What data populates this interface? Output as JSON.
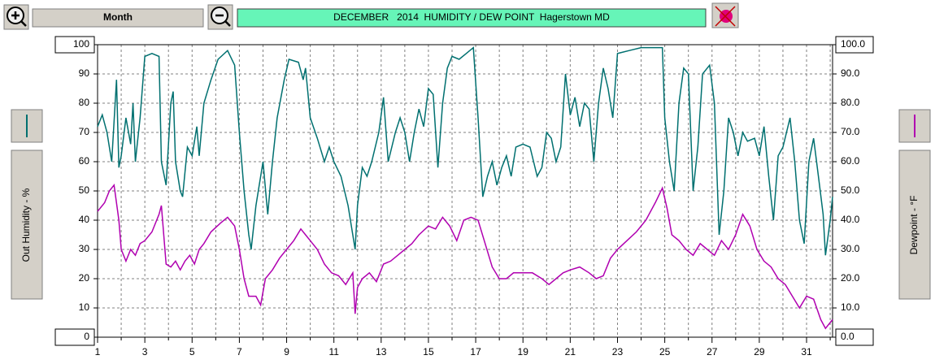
{
  "toolbar": {
    "period": "Month"
  },
  "chart_data": {
    "type": "line",
    "title": "DECEMBER   2014  HUMIDITY / DEW POINT  Hagerstown MD",
    "ylabel": "Out Humidity - %",
    "y2label": "Dewpoint - °F",
    "xlim": [
      1,
      32.1
    ],
    "xticks": [
      1,
      3,
      5,
      7,
      9,
      11,
      13,
      15,
      17,
      19,
      21,
      23,
      25,
      27,
      29,
      31
    ],
    "xminorticks": [
      2,
      4,
      6,
      8,
      10,
      12,
      14,
      16,
      18,
      20,
      22,
      24,
      26,
      28,
      30,
      32
    ],
    "ylim": [
      0,
      100
    ],
    "yticks": [
      0,
      10,
      20,
      30,
      40,
      50,
      60,
      70,
      80,
      90,
      100
    ],
    "y2lim": [
      0,
      100
    ],
    "y2ticks": [
      {
        "value": 0,
        "label": "0.0"
      },
      {
        "value": 10,
        "label": "10.0"
      },
      {
        "value": 20,
        "label": "20.0"
      },
      {
        "value": 30,
        "label": "30.0"
      },
      {
        "value": 40,
        "label": "40.0"
      },
      {
        "value": 50,
        "label": "50.0"
      },
      {
        "value": 60,
        "label": "60.0"
      },
      {
        "value": 70,
        "label": "70.0"
      },
      {
        "value": 80,
        "label": "80.0"
      },
      {
        "value": 90,
        "label": "90.0"
      },
      {
        "value": 100,
        "label": "100.0"
      }
    ],
    "grid": true,
    "series": [
      {
        "color": "#007070",
        "x": [
          1.0,
          1.2,
          1.4,
          1.6,
          1.8,
          1.9,
          2.0,
          2.2,
          2.4,
          2.5,
          2.6,
          2.8,
          3.0,
          3.3,
          3.6,
          3.7,
          3.9,
          4.1,
          4.2,
          4.3,
          4.5,
          4.6,
          4.8,
          5.0,
          5.2,
          5.3,
          5.5,
          5.8,
          6.1,
          6.5,
          6.8,
          7.0,
          7.2,
          7.4,
          7.5,
          7.7,
          7.9,
          8.0,
          8.2,
          8.4,
          8.6,
          8.9,
          9.1,
          9.5,
          9.7,
          9.8,
          10.0,
          10.3,
          10.6,
          10.8,
          11.0,
          11.3,
          11.6,
          11.9,
          12.0,
          12.2,
          12.4,
          12.6,
          12.9,
          13.1,
          13.3,
          13.6,
          13.8,
          14.0,
          14.2,
          14.4,
          14.6,
          14.8,
          15.0,
          15.2,
          15.4,
          15.6,
          15.8,
          16.0,
          16.3,
          16.6,
          16.9,
          17.1,
          17.3,
          17.5,
          17.7,
          17.9,
          18.1,
          18.3,
          18.5,
          18.7,
          19.0,
          19.3,
          19.6,
          19.8,
          20.0,
          20.2,
          20.4,
          20.6,
          20.8,
          21.0,
          21.2,
          21.4,
          21.6,
          21.8,
          22.0,
          22.2,
          22.4,
          22.6,
          22.8,
          23.0,
          23.5,
          24.0,
          24.5,
          24.9,
          25.0,
          25.2,
          25.4,
          25.6,
          25.8,
          26.0,
          26.2,
          26.4,
          26.6,
          26.9,
          27.1,
          27.3,
          27.5,
          27.7,
          27.9,
          28.1,
          28.3,
          28.5,
          28.8,
          29.0,
          29.2,
          29.4,
          29.6,
          29.8,
          30.0,
          30.3,
          30.5,
          30.7,
          30.9,
          31.1,
          31.3,
          31.5,
          31.7,
          31.8,
          32.0,
          32.1
        ],
        "values": [
          72,
          76,
          70,
          60,
          88,
          58,
          62,
          75,
          66,
          80,
          60,
          75,
          96,
          97,
          96,
          60,
          52,
          80,
          84,
          60,
          50,
          48,
          65,
          62,
          72,
          62,
          80,
          88,
          95,
          98,
          93,
          70,
          50,
          35,
          30,
          45,
          55,
          60,
          42,
          60,
          75,
          88,
          95,
          94,
          88,
          92,
          75,
          68,
          60,
          65,
          60,
          55,
          45,
          30,
          45,
          58,
          55,
          60,
          70,
          82,
          60,
          70,
          75,
          70,
          60,
          70,
          78,
          72,
          85,
          83,
          58,
          80,
          92,
          96,
          95,
          97,
          99,
          75,
          48,
          55,
          60,
          52,
          58,
          62,
          55,
          65,
          66,
          65,
          55,
          58,
          70,
          68,
          60,
          65,
          90,
          76,
          82,
          72,
          80,
          78,
          60,
          80,
          92,
          85,
          75,
          97,
          98,
          99,
          99,
          99,
          75,
          60,
          50,
          80,
          92,
          90,
          50,
          65,
          90,
          93,
          80,
          35,
          50,
          75,
          70,
          62,
          70,
          67,
          68,
          62,
          72,
          55,
          40,
          62,
          65,
          75,
          60,
          40,
          32,
          60,
          68,
          55,
          42,
          28,
          40,
          48
        ]
      },
      {
        "color": "#b000b0",
        "axis": "y2",
        "x": [
          1.0,
          1.3,
          1.5,
          1.7,
          1.9,
          2.0,
          2.2,
          2.4,
          2.6,
          2.8,
          3.0,
          3.3,
          3.6,
          3.7,
          3.9,
          4.1,
          4.3,
          4.5,
          4.7,
          4.9,
          5.1,
          5.3,
          5.5,
          5.8,
          6.2,
          6.5,
          6.8,
          7.0,
          7.2,
          7.4,
          7.7,
          7.9,
          8.1,
          8.4,
          8.7,
          9.0,
          9.3,
          9.6,
          9.8,
          10.0,
          10.3,
          10.6,
          10.9,
          11.2,
          11.5,
          11.8,
          11.9,
          12.0,
          12.2,
          12.5,
          12.8,
          13.1,
          13.4,
          13.7,
          14.0,
          14.3,
          14.6,
          15.0,
          15.3,
          15.6,
          15.9,
          16.2,
          16.5,
          16.8,
          17.1,
          17.4,
          17.7,
          18.0,
          18.3,
          18.6,
          19.0,
          19.4,
          19.8,
          20.1,
          20.4,
          20.7,
          21.0,
          21.4,
          21.8,
          22.1,
          22.4,
          22.7,
          23.0,
          23.4,
          23.8,
          24.2,
          24.6,
          24.9,
          25.1,
          25.3,
          25.6,
          25.9,
          26.2,
          26.5,
          26.8,
          27.1,
          27.4,
          27.7,
          28.0,
          28.3,
          28.6,
          28.9,
          29.2,
          29.5,
          29.8,
          30.1,
          30.4,
          30.7,
          31.0,
          31.3,
          31.6,
          31.8,
          32.1
        ],
        "values": [
          43,
          46,
          50,
          52,
          40,
          30,
          26,
          30,
          28,
          32,
          33,
          36,
          42,
          45,
          25,
          24,
          26,
          23,
          26,
          28,
          25,
          30,
          32,
          36,
          39,
          41,
          38,
          30,
          20,
          14,
          14,
          11,
          20,
          23,
          27,
          30,
          33,
          37,
          35,
          33,
          30,
          25,
          22,
          21,
          18,
          22,
          8,
          17,
          20,
          22,
          19,
          25,
          26,
          28,
          30,
          32,
          35,
          38,
          37,
          41,
          38,
          33,
          40,
          41,
          40,
          32,
          24,
          20,
          20,
          22,
          22,
          22,
          20,
          18,
          20,
          22,
          23,
          24,
          22,
          20,
          21,
          27,
          30,
          33,
          36,
          40,
          46,
          51,
          44,
          35,
          33,
          30,
          28,
          32,
          30,
          28,
          33,
          30,
          35,
          42,
          38,
          30,
          26,
          24,
          20,
          18,
          14,
          10,
          14,
          13,
          6,
          3,
          6
        ]
      }
    ]
  }
}
